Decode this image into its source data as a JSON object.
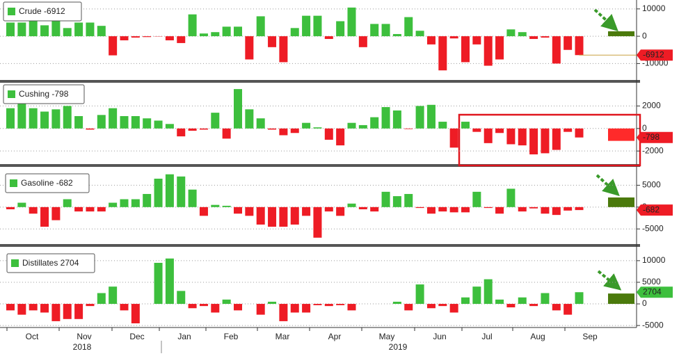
{
  "chart_data": [
    {
      "type": "bar",
      "name": "Crude -6912",
      "positive_color": "#3dbf3d",
      "negative_color": "#ee1c25",
      "values": [
        5000,
        5000,
        6000,
        4000,
        6500,
        3000,
        5000,
        5000,
        3800,
        -7000,
        -1500,
        -500,
        -300,
        -100,
        -1500,
        -2500,
        8000,
        1000,
        1500,
        3500,
        3500,
        -8500,
        7300,
        -4000,
        -9500,
        3000,
        7500,
        7500,
        -1000,
        5500,
        10500,
        -4000,
        4500,
        4500,
        800,
        7000,
        2000,
        -3000,
        -12500,
        -800,
        -9500,
        -3000,
        -10800,
        -8500,
        2500,
        1500,
        -1000,
        -500,
        -10000,
        -5000,
        -6912
      ],
      "expected": 1800,
      "expected_color": "#4b7a0c",
      "ylim": [
        -15500,
        12500
      ],
      "yticks": [
        10000,
        0,
        -10000
      ],
      "grid": true
    },
    {
      "type": "bar",
      "name": "Cushing -798",
      "positive_color": "#3dbf3d",
      "negative_color": "#ee1c25",
      "values": [
        1800,
        2200,
        1800,
        1500,
        1700,
        2000,
        1100,
        -100,
        1200,
        1800,
        1100,
        1100,
        900,
        700,
        400,
        -700,
        -200,
        -100,
        1400,
        -900,
        3500,
        1700,
        900,
        -100,
        -600,
        -400,
        500,
        100,
        -1000,
        -1500,
        500,
        300,
        1000,
        1900,
        1600,
        -50,
        2000,
        2100,
        600,
        -1700,
        600,
        -300,
        -1300,
        -400,
        -1400,
        -1500,
        -2300,
        -2200,
        -1900,
        -300,
        -798
      ],
      "expected": -1100,
      "expected_color": "#ff2a2a",
      "ylim": [
        -3100,
        4000
      ],
      "yticks": [
        2000,
        0,
        -2000
      ],
      "grid": true
    },
    {
      "type": "bar",
      "name": "Gasoline -682",
      "positive_color": "#3dbf3d",
      "negative_color": "#ee1c25",
      "values": [
        -500,
        1000,
        -1500,
        -4500,
        -3000,
        1800,
        -1000,
        -1000,
        -1000,
        1000,
        1800,
        1800,
        3000,
        6500,
        7500,
        7000,
        4000,
        -2000,
        500,
        300,
        -1500,
        -2000,
        -4000,
        -4500,
        -4500,
        -4000,
        -2000,
        -7000,
        -1000,
        -2000,
        800,
        -500,
        -1000,
        3500,
        2500,
        3000,
        -200,
        -1500,
        -1000,
        -1200,
        -1200,
        3500,
        -200,
        -1500,
        4200,
        -1000,
        -300,
        -1500,
        -1800,
        -800,
        -682
      ],
      "expected": 2200,
      "expected_color": "#4b7a0c",
      "ylim": [
        -8300,
        9200
      ],
      "yticks": [
        5000,
        0,
        -5000
      ],
      "grid": true
    },
    {
      "type": "bar",
      "name": "Distillates 2704",
      "positive_color": "#3dbf3d",
      "negative_color": "#ee1c25",
      "values": [
        -1500,
        -2500,
        -1500,
        -2000,
        -4000,
        -3500,
        -3500,
        -500,
        2500,
        4000,
        -1500,
        -4500,
        0,
        9500,
        10500,
        3000,
        -1000,
        -500,
        -2000,
        1000,
        -1500,
        0,
        -2500,
        500,
        -4000,
        -2000,
        -2000,
        -300,
        -500,
        -300,
        -1500,
        0,
        0,
        0,
        500,
        -1500,
        4500,
        -1000,
        -500,
        -2000,
        1500,
        4000,
        5700,
        1000,
        -800,
        1500,
        -500,
        2500,
        -1500,
        -2500,
        2704
      ],
      "expected": 2400,
      "expected_color": "#4b7a0c",
      "ylim": [
        -5300,
        13200
      ],
      "yticks": [
        10000,
        5000,
        0,
        -5000
      ],
      "grid": true,
      "months": [
        "Oct",
        "Nov",
        "Dec",
        "Jan",
        "Feb",
        "Mar",
        "Apr",
        "May",
        "Jun",
        "Jul",
        "Aug",
        "Sep"
      ],
      "years": [
        "2018",
        "2019"
      ]
    }
  ]
}
